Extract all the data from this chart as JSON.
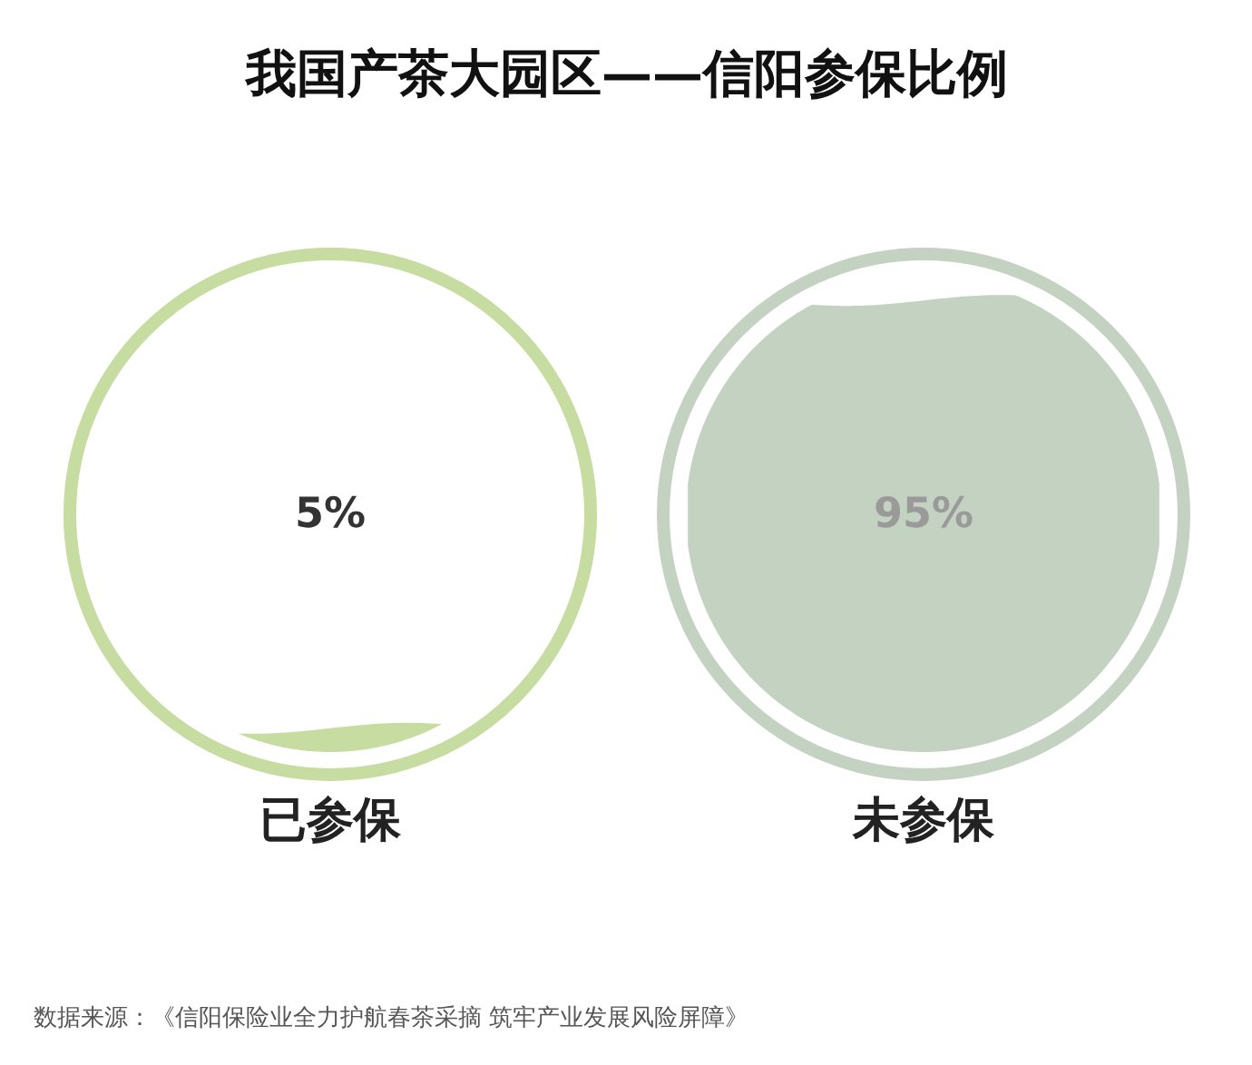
{
  "chart_data": {
    "type": "other",
    "title": "我国产茶大园区——信阳参保比例",
    "categories": [
      "已参保",
      "未参保"
    ],
    "values": [
      5,
      95
    ],
    "value_labels": [
      "5%",
      "95%"
    ],
    "colors": [
      "#c6dca0",
      "#c4d3c1"
    ],
    "annotations": [
      "数据来源：《信阳保险业全力护航春茶采摘 筑牢产业发展风险屏障》"
    ]
  }
}
